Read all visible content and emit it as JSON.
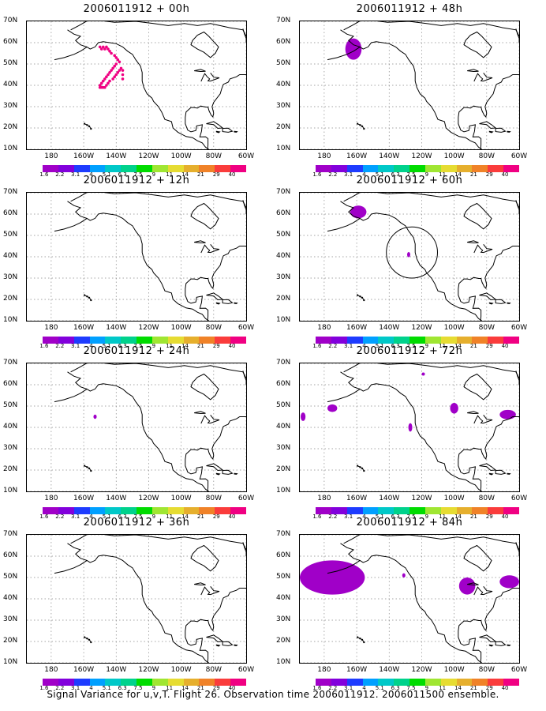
{
  "footer": "Signal Variance for u,v,T. Flight 26. Observation time 2006011912. 2006011500 ensemble.",
  "chart_data": {
    "type": "heatmap",
    "lon_range": [
      -195,
      -60
    ],
    "lat_range": [
      10,
      70
    ],
    "x_ticks": [
      "180",
      "160W",
      "140W",
      "120W",
      "100W",
      "80W",
      "60W"
    ],
    "x_tick_values": [
      -180,
      -160,
      -140,
      -120,
      -100,
      -80,
      -60
    ],
    "y_ticks": [
      "10N",
      "20N",
      "30N",
      "40N",
      "50N",
      "60N",
      "70N"
    ],
    "y_tick_values": [
      10,
      20,
      30,
      40,
      50,
      60,
      70
    ],
    "grid": true,
    "colorbar": {
      "labels": [
        "1.6",
        "2.2",
        "3.1",
        "4",
        "5.1",
        "6.3",
        "7.5",
        "9",
        "11",
        "14",
        "21",
        "29",
        "40"
      ],
      "colors": [
        "#a000c8",
        "#8200dc",
        "#1e3cff",
        "#00a0ff",
        "#00c8c8",
        "#00d28c",
        "#00dc00",
        "#a0e632",
        "#e6dc32",
        "#e6af2d",
        "#f08228",
        "#fa3c3c",
        "#f00082"
      ]
    },
    "panels": [
      {
        "title": "2006011912 + 00h",
        "features": [
          {
            "kind": "dots",
            "lon": [
              -150,
              -149,
              -148,
              -147,
              -146,
              -145,
              -144,
              -143,
              -141,
              -140,
              -139,
              -138,
              -140,
              -141,
              -142,
              -143,
              -144,
              -145,
              -146,
              -147,
              -148,
              -149,
              -150,
              -150,
              -149,
              -148,
              -147,
              -146,
              -145,
              -144,
              -142,
              -141,
              -140,
              -139,
              -138,
              -137,
              -136,
              -136,
              -136
            ],
            "lat": [
              58,
              57,
              58,
              57,
              58,
              57,
              56,
              55,
              54,
              53,
              52,
              51,
              50,
              49,
              48,
              47,
              46,
              45,
              44,
              43,
              42,
              41,
              40,
              39,
              39,
              39,
              39,
              40,
              41,
              42,
              43,
              44,
              45,
              46,
              47,
              48,
              47,
              45,
              43
            ]
          }
        ]
      },
      {
        "title": "2006011912 + 48h",
        "features": [
          {
            "kind": "blob",
            "lon": -162,
            "lat": 57,
            "rlon": 5,
            "rlat": 5
          }
        ]
      },
      {
        "title": "2006011912 + 12h",
        "features": []
      },
      {
        "title": "2006011912 + 60h",
        "features": [
          {
            "kind": "blob",
            "lon": -159,
            "lat": 61,
            "rlon": 5,
            "rlat": 3
          },
          {
            "kind": "blob",
            "lon": -128,
            "lat": 41,
            "rlon": 0.8,
            "rlat": 1.2
          },
          {
            "kind": "circle",
            "lon": -126,
            "lat": 42,
            "r": 12
          }
        ]
      },
      {
        "title": "2006011912 + 24h",
        "features": [
          {
            "kind": "blob",
            "lon": -153,
            "lat": 45,
            "rlon": 1,
            "rlat": 1
          }
        ]
      },
      {
        "title": "2006011912 + 72h",
        "features": [
          {
            "kind": "blob",
            "lon": -193,
            "lat": 45,
            "rlon": 1.5,
            "rlat": 2
          },
          {
            "kind": "blob",
            "lon": -175,
            "lat": 49,
            "rlon": 3,
            "rlat": 1.8
          },
          {
            "kind": "blob",
            "lon": -127,
            "lat": 40,
            "rlon": 1.2,
            "rlat": 2
          },
          {
            "kind": "blob",
            "lon": -100,
            "lat": 49,
            "rlon": 2.5,
            "rlat": 2.5
          },
          {
            "kind": "blob",
            "lon": -67,
            "lat": 46,
            "rlon": 5,
            "rlat": 2.2
          },
          {
            "kind": "blob",
            "lon": -119,
            "lat": 65,
            "rlon": 0.5,
            "rlat": 0.6
          }
        ]
      },
      {
        "title": "2006011912 + 36h",
        "features": []
      },
      {
        "title": "2006011912 + 84h",
        "features": [
          {
            "kind": "blob",
            "lon": -175,
            "lat": 50,
            "rlon": 20,
            "rlat": 8
          },
          {
            "kind": "blob",
            "lon": -92,
            "lat": 46,
            "rlon": 5,
            "rlat": 4
          },
          {
            "kind": "blob",
            "lon": -66,
            "lat": 48,
            "rlon": 6,
            "rlat": 3
          },
          {
            "kind": "blob",
            "lon": -131,
            "lat": 51,
            "rlon": 0.6,
            "rlat": 1
          }
        ]
      }
    ]
  }
}
